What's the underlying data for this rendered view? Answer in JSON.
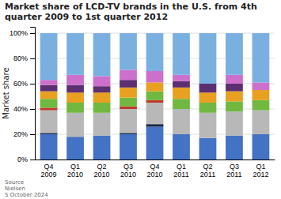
{
  "chart_data": {
    "type": "bar",
    "stacked": true,
    "title": "Market share of LCD-TV brands in the U.S. from 4th quarter 2009 to 1st quarter 2012",
    "y_label": "Market share",
    "annotations": [
      "Source\nNielsen\n5 October 2024"
    ],
    "categories": [
      "Q4\n2009",
      "Q1\n2010",
      "Q2\n2010",
      "Q3\n2010",
      "Q4\n2010",
      "Q1\n2011",
      "Q2\n2011",
      "Q3\n2011",
      "Q1\n2012"
    ],
    "series": [
      {
        "color": "#4472c4",
        "values": [
          0.2,
          0.18,
          0.19,
          0.2,
          0.26,
          0.2,
          0.17,
          0.19,
          0.2
        ]
      },
      {
        "color": "#1a2744",
        "values": [
          0.01,
          0.0,
          0.0,
          0.01,
          0.02,
          0.0,
          0.0,
          0.0,
          0.0
        ]
      },
      {
        "color": "#b8b8b8",
        "values": [
          0.18,
          0.19,
          0.18,
          0.19,
          0.17,
          0.2,
          0.2,
          0.19,
          0.19
        ]
      },
      {
        "color": "#c0392b",
        "values": [
          0.02,
          0.0,
          0.0,
          0.02,
          0.02,
          0.0,
          0.0,
          0.0,
          0.0
        ]
      },
      {
        "color": "#70b840",
        "values": [
          0.07,
          0.08,
          0.08,
          0.07,
          0.07,
          0.08,
          0.08,
          0.08,
          0.08
        ]
      },
      {
        "color": "#e8a020",
        "values": [
          0.06,
          0.08,
          0.08,
          0.08,
          0.07,
          0.09,
          0.08,
          0.08,
          0.08
        ]
      },
      {
        "color": "#5c3070",
        "values": [
          0.05,
          0.06,
          0.05,
          0.06,
          0.0,
          0.05,
          0.07,
          0.06,
          0.0
        ]
      },
      {
        "color": "#cc70cc",
        "values": [
          0.04,
          0.08,
          0.08,
          0.08,
          0.09,
          0.05,
          0.0,
          0.07,
          0.06
        ]
      },
      {
        "color": "#7ab0e0",
        "values": [
          0.37,
          0.33,
          0.34,
          0.29,
          0.3,
          0.33,
          0.4,
          0.33,
          0.39
        ]
      }
    ],
    "ylim": [
      0,
      1.05
    ],
    "yticks": [
      {
        "value": 0,
        "label": "0%"
      },
      {
        "value": 0.2,
        "label": "20%"
      },
      {
        "value": 0.4,
        "label": "40%"
      },
      {
        "value": 0.6,
        "label": "60%"
      },
      {
        "value": 0.8,
        "label": "80%"
      },
      {
        "value": 1.0,
        "label": "100%"
      }
    ],
    "grid": true
  }
}
